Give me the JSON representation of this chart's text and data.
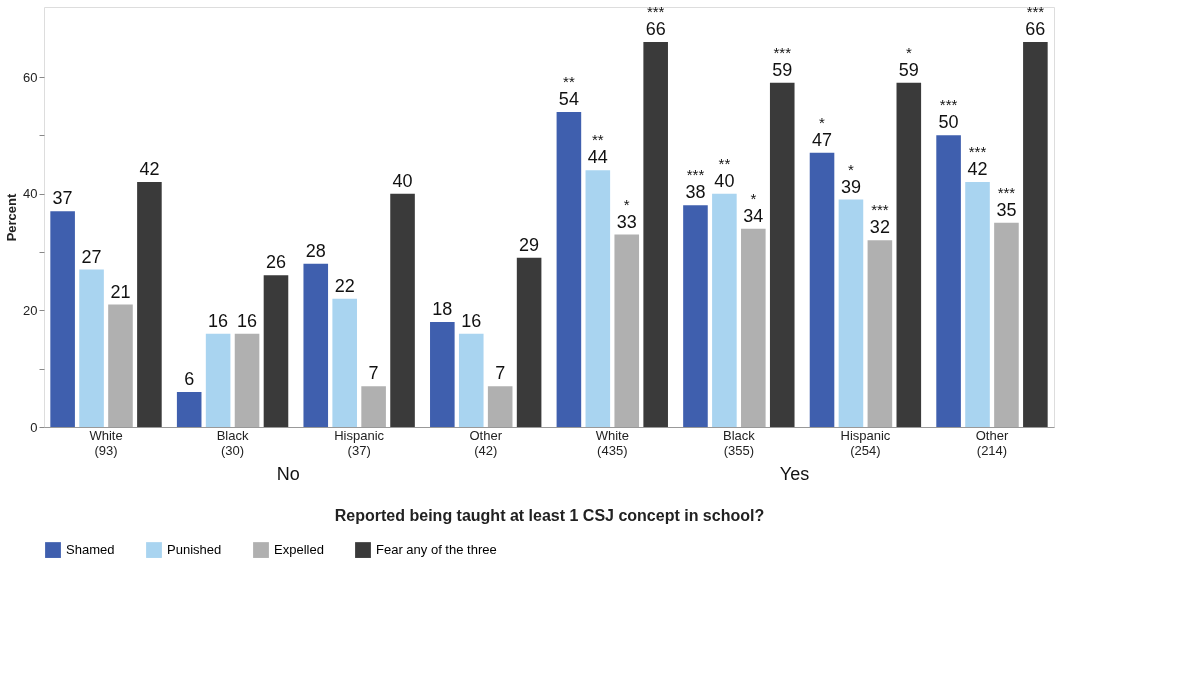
{
  "chart_data": {
    "type": "bar",
    "categories": [
      "White (93)",
      "Black (30)",
      "Hispanic (37)",
      "Other (42)",
      "White (435)",
      "Black (355)",
      "Hispanic (254)",
      "Other (214)"
    ],
    "series": [
      {
        "name": "Shamed",
        "color": "#3f5fae",
        "values": [
          37,
          6,
          28,
          18,
          54,
          38,
          47,
          50
        ],
        "value_labels": [
          "37",
          "6",
          "28",
          "18",
          "**\n54",
          "***\n38",
          "*\n47",
          "***\n50"
        ]
      },
      {
        "name": "Punished",
        "color": "#a9d4f0",
        "values": [
          27,
          16,
          22,
          16,
          44,
          40,
          39,
          42
        ],
        "value_labels": [
          "27",
          "16",
          "22",
          "16",
          "**\n44",
          "**\n40",
          "*\n39",
          "***\n42"
        ]
      },
      {
        "name": "Expelled",
        "color": "#b0b0b0",
        "values": [
          21,
          16,
          7,
          7,
          33,
          34,
          32,
          35
        ],
        "value_labels": [
          "21",
          "16",
          "7",
          "7",
          "*\n33",
          "*\n34",
          "***\n32",
          "***\n35"
        ]
      },
      {
        "name": "Fear any of the three",
        "color": "#3a3a3a",
        "values": [
          42,
          26,
          40,
          29,
          66,
          59,
          59,
          66
        ],
        "value_labels": [
          "42",
          "26",
          "40",
          "29",
          "***\n66",
          "***\n59",
          "*\n59",
          "***\n66"
        ]
      }
    ],
    "ylabel": "Percent",
    "xlabel": "Reported being taught at least 1 CSJ concept in school?",
    "ylim": [
      0,
      72
    ],
    "yticks": [
      0,
      {
        "value": 10,
        "label": null
      },
      20,
      {
        "value": 30,
        "label": null
      },
      40,
      {
        "value": 50,
        "label": null
      },
      60
    ],
    "grid": false,
    "legend": "bottom",
    "annotations": [
      "No",
      "Yes"
    ]
  }
}
